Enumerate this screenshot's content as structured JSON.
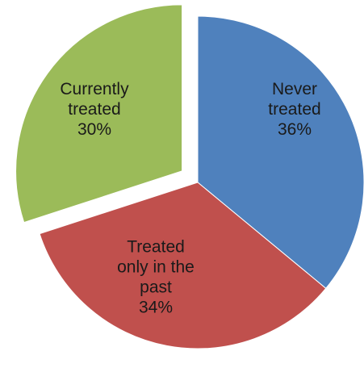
{
  "chart_data": {
    "type": "pie",
    "slices": [
      {
        "name": "Never treated",
        "label_lines": [
          "Never",
          "treated",
          "36%"
        ],
        "value": 36,
        "color": "#4f81bd",
        "exploded": false
      },
      {
        "name": "Treated only in the past",
        "label_lines": [
          "Treated",
          "only in the",
          "past",
          "34%"
        ],
        "value": 34,
        "color": "#c0504d",
        "exploded": false
      },
      {
        "name": "Currently treated",
        "label_lines": [
          "Currently",
          "treated",
          "30%"
        ],
        "value": 30,
        "color": "#9bbb59",
        "exploded": true
      }
    ],
    "start_angle": "12 o'clock",
    "direction": "clockwise",
    "legend": "none",
    "title": ""
  }
}
